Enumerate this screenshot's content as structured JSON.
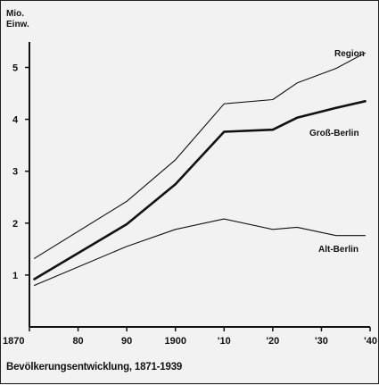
{
  "caption": "Bevölkerungsentwicklung, 1871-1939",
  "chart_data": {
    "type": "line",
    "ylabel_line1": "Mio.",
    "ylabel_line2": "Einw.",
    "xlim": [
      1870,
      1940
    ],
    "ylim": [
      0,
      5.8
    ],
    "x_ticks": [
      1870,
      1880,
      1890,
      1900,
      1910,
      1920,
      1930,
      1940
    ],
    "x_tick_labels": [
      "1870",
      "80",
      "90",
      "1900",
      "'10",
      "'20",
      "'30",
      "'40"
    ],
    "y_ticks": [
      1,
      2,
      3,
      4,
      5
    ],
    "y_tick_labels": [
      "1",
      "2",
      "3",
      "4",
      "5"
    ],
    "series": [
      {
        "name": "Region",
        "x": [
          1871,
          1890,
          1900,
          1910,
          1920,
          1925,
          1933,
          1939
        ],
        "y": [
          1.32,
          2.42,
          3.22,
          4.3,
          4.38,
          4.7,
          4.98,
          5.28
        ],
        "color": "#111111",
        "width": 1.1
      },
      {
        "name": "Groß-Berlin",
        "x": [
          1871,
          1890,
          1900,
          1910,
          1920,
          1925,
          1933,
          1939
        ],
        "y": [
          0.92,
          1.98,
          2.75,
          3.76,
          3.8,
          4.03,
          4.22,
          4.35
        ],
        "color": "#111111",
        "width": 2.6
      },
      {
        "name": "Alt-Berlin",
        "x": [
          1871,
          1890,
          1900,
          1910,
          1920,
          1925,
          1933,
          1939
        ],
        "y": [
          0.8,
          1.55,
          1.88,
          2.08,
          1.88,
          1.92,
          1.76,
          1.76
        ],
        "color": "#111111",
        "width": 1.1
      }
    ]
  }
}
